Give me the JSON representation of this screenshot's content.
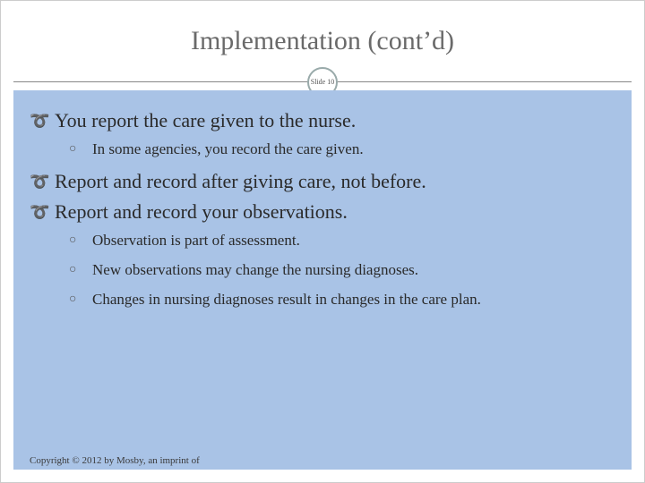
{
  "title": "Implementation (cont’d)",
  "slide_badge": "Slide 10",
  "colors": {
    "content_bg": "#a9c3e6",
    "title_color": "#6a6a6a",
    "text_color": "#2a2a2a",
    "bullet_color": "#555555",
    "divider_color": "#888888"
  },
  "bullets": [
    {
      "level": 1,
      "text": "You report the care given to the nurse."
    },
    {
      "level": 2,
      "text": "In some agencies, you record the care given."
    },
    {
      "level": 1,
      "text": "Report and record after giving care, not before."
    },
    {
      "level": 1,
      "text": "Report and record your observations."
    },
    {
      "level": 2,
      "text": "Observation is part of assessment."
    },
    {
      "level": 2,
      "text": "New observations may change the nursing diagnoses."
    },
    {
      "level": 2,
      "text": "Changes in nursing diagnoses result in changes in the care plan."
    }
  ],
  "copyright": "Copyright © 2012 by Mosby, an imprint of"
}
